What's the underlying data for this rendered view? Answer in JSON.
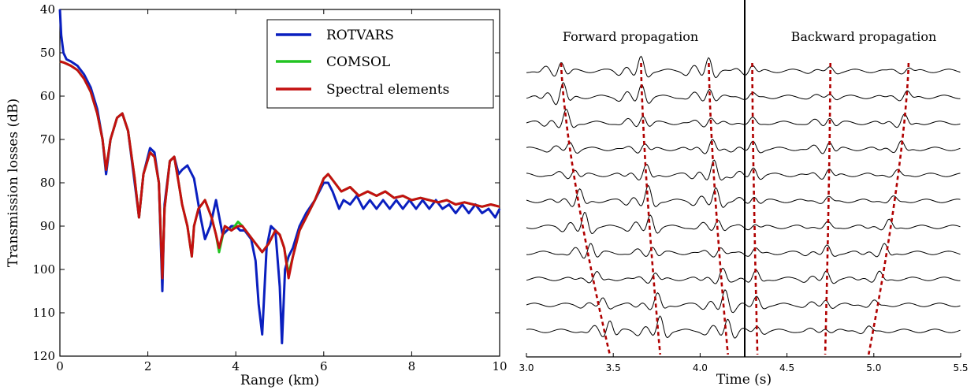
{
  "chart_data": [
    {
      "type": "line",
      "xlabel": "Range (km)",
      "ylabel": "Transmission losses (dB)",
      "xlim": [
        0,
        10
      ],
      "ylim": [
        40,
        120
      ],
      "y_inverted": true,
      "xticks": [
        0,
        2,
        4,
        6,
        8,
        10
      ],
      "xtick_labels": [
        "0",
        "2",
        "4",
        "6",
        "8",
        "10"
      ],
      "yticks": [
        40,
        50,
        60,
        70,
        80,
        90,
        100,
        110,
        120
      ],
      "ytick_labels": [
        "40",
        "50",
        "60",
        "70",
        "80",
        "90",
        "100",
        "110",
        "120"
      ],
      "grid": false,
      "legend_position": "top-right",
      "series": [
        {
          "name": "ROTVARS",
          "color": "#0a1fbf",
          "x": [
            0,
            0.03,
            0.08,
            0.15,
            0.25,
            0.4,
            0.55,
            0.7,
            0.85,
            0.97,
            1.05,
            1.15,
            1.3,
            1.42,
            1.55,
            1.7,
            1.8,
            1.9,
            2.05,
            2.15,
            2.25,
            2.33,
            2.38,
            2.5,
            2.6,
            2.7,
            2.78,
            2.9,
            3.05,
            3.2,
            3.3,
            3.42,
            3.55,
            3.7,
            3.8,
            3.9,
            4.0,
            4.1,
            4.2,
            4.35,
            4.45,
            4.52,
            4.6,
            4.7,
            4.8,
            4.9,
            5.0,
            5.05,
            5.12,
            5.2,
            5.3,
            5.45,
            5.6,
            5.8,
            6.0,
            6.1,
            6.2,
            6.35,
            6.45,
            6.6,
            6.75,
            6.9,
            7.05,
            7.2,
            7.35,
            7.5,
            7.65,
            7.8,
            7.95,
            8.1,
            8.25,
            8.4,
            8.55,
            8.7,
            8.85,
            9.0,
            9.15,
            9.3,
            9.45,
            9.6,
            9.75,
            9.9,
            10.0
          ],
          "y": [
            40,
            46,
            50,
            51.5,
            52,
            53,
            55,
            58,
            63,
            70,
            78,
            70,
            65,
            64,
            68,
            80,
            88,
            78,
            72,
            73,
            80,
            105,
            85,
            75,
            74,
            78,
            77,
            76,
            79,
            88,
            93,
            90,
            84,
            92,
            91,
            90,
            90,
            91,
            91,
            93,
            98,
            108,
            115,
            95,
            90,
            91,
            104,
            117,
            100,
            97,
            95,
            90,
            87,
            84,
            80,
            80,
            82,
            86,
            84,
            85,
            83,
            86,
            84,
            86,
            84,
            86,
            84,
            86,
            84,
            86,
            84,
            86,
            84,
            86,
            85,
            87,
            85,
            87,
            85,
            87,
            86,
            88,
            86
          ]
        },
        {
          "name": "COMSOL",
          "color": "#22c422",
          "x": [
            0,
            0.1,
            0.25,
            0.4,
            0.55,
            0.7,
            0.85,
            0.97,
            1.05,
            1.15,
            1.3,
            1.42,
            1.55,
            1.7,
            1.8,
            1.9,
            2.05,
            2.15,
            2.25,
            2.33,
            2.38,
            2.5,
            2.6,
            2.7,
            2.78,
            2.9,
            3.0,
            3.05,
            3.15,
            3.3,
            3.45,
            3.55,
            3.62,
            3.75,
            3.9,
            4.05,
            4.15,
            4.3,
            4.45,
            4.6,
            4.75,
            4.9,
            5.0,
            5.1,
            5.2,
            5.3,
            5.45,
            5.6,
            5.8,
            6.0,
            6.1,
            6.25,
            6.4,
            6.6,
            6.8,
            7.0,
            7.2,
            7.4,
            7.6,
            7.8,
            8.0,
            8.2,
            8.4,
            8.6,
            8.8,
            9.0,
            9.2,
            9.4,
            9.6,
            9.8,
            10.0
          ],
          "y": [
            52,
            52.3,
            53,
            54,
            56,
            59,
            64,
            70,
            77,
            70,
            65,
            64,
            68,
            79,
            88,
            78,
            73,
            74,
            80,
            102,
            86,
            75,
            74,
            80,
            85,
            90,
            97,
            90,
            86,
            84,
            88,
            92,
            96,
            90,
            91,
            89,
            90,
            92,
            94,
            96,
            94,
            91,
            92,
            95,
            101,
            97,
            91,
            88,
            84,
            79,
            78,
            80,
            82,
            81,
            83,
            82,
            83,
            82,
            83.5,
            83,
            84,
            83.5,
            84,
            84.5,
            84,
            85,
            84.5,
            85,
            85.5,
            85,
            85.5
          ]
        },
        {
          "name": "Spectral elements",
          "color": "#c41010",
          "x": [
            0,
            0.1,
            0.25,
            0.4,
            0.55,
            0.7,
            0.85,
            0.97,
            1.05,
            1.15,
            1.3,
            1.42,
            1.55,
            1.7,
            1.8,
            1.9,
            2.05,
            2.15,
            2.25,
            2.33,
            2.38,
            2.5,
            2.6,
            2.7,
            2.78,
            2.9,
            3.0,
            3.05,
            3.15,
            3.3,
            3.45,
            3.55,
            3.62,
            3.75,
            3.9,
            4.05,
            4.15,
            4.3,
            4.45,
            4.6,
            4.75,
            4.9,
            5.0,
            5.1,
            5.2,
            5.3,
            5.45,
            5.6,
            5.8,
            6.0,
            6.1,
            6.25,
            6.4,
            6.6,
            6.8,
            7.0,
            7.2,
            7.4,
            7.6,
            7.8,
            8.0,
            8.2,
            8.4,
            8.6,
            8.8,
            9.0,
            9.2,
            9.4,
            9.6,
            9.8,
            10.0
          ],
          "y": [
            52,
            52.3,
            53,
            54,
            56,
            59,
            64,
            70,
            77,
            70,
            65,
            64,
            68,
            79,
            88,
            78,
            73,
            74,
            80,
            102,
            86,
            75,
            74,
            80,
            85,
            90,
            97,
            90,
            86,
            84,
            88,
            92,
            95,
            90,
            91,
            90,
            90,
            92,
            94,
            96,
            94,
            91,
            92,
            95,
            102,
            97,
            91,
            88,
            84,
            79,
            78,
            80,
            82,
            81,
            83,
            82,
            83,
            82,
            83.5,
            83,
            84,
            83.5,
            84,
            84.5,
            84,
            85,
            84.5,
            85,
            85.5,
            85,
            85.5
          ]
        }
      ]
    },
    {
      "type": "line",
      "xlabel": "Time (s)",
      "ylabel": "",
      "xlim": [
        3.0,
        5.5
      ],
      "xticks": [
        3.0,
        3.5,
        4.0,
        4.5,
        5.0,
        5.5
      ],
      "xtick_labels": [
        "3.0",
        "3.5",
        "4.0",
        "4.5",
        "5.0",
        "5.5"
      ],
      "divider_time": 4.22,
      "panel_titles": [
        "Forward propagation",
        "Backward propagation"
      ],
      "trace_count": 11,
      "trace_color": "#000000",
      "arrival_color": "#b00000",
      "arrival_curves": [
        {
          "top_time": 3.2,
          "bottom_time": 3.48
        },
        {
          "top_time": 3.66,
          "bottom_time": 3.77
        },
        {
          "top_time": 4.05,
          "bottom_time": 4.16
        },
        {
          "top_time": 4.3,
          "bottom_time": 4.33
        },
        {
          "top_time": 4.75,
          "bottom_time": 4.72
        },
        {
          "top_time": 5.2,
          "bottom_time": 4.97
        }
      ]
    }
  ]
}
